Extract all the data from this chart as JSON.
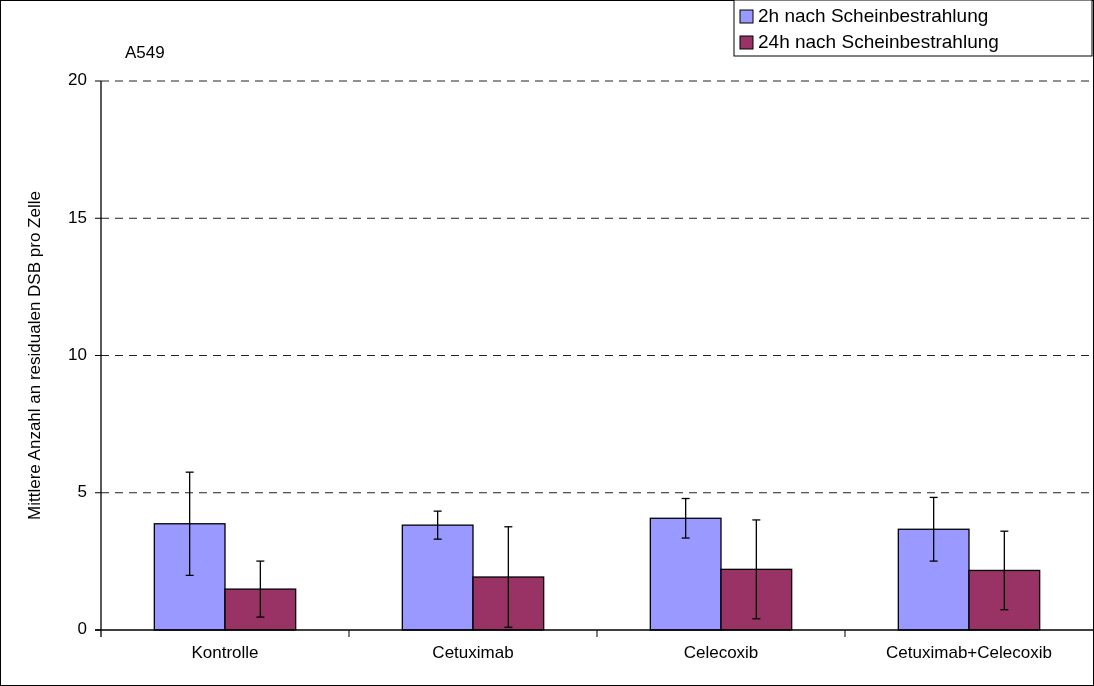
{
  "chart_data": {
    "type": "bar",
    "title": "A549",
    "ylabel": "Mittlere Anzahl an residualen DSB pro Zelle",
    "categories": [
      "Kontrolle",
      "Cetuximab",
      "Celecoxib",
      "Cetuximab+Celecoxib"
    ],
    "series": [
      {
        "name": "2h nach Scheinbestrahlung",
        "color": "#9999ff",
        "values": [
          3.87,
          3.82,
          4.07,
          3.67
        ],
        "errors": [
          1.88,
          0.51,
          0.72,
          1.16
        ]
      },
      {
        "name": "24h nach Scheinbestrahlung",
        "color": "#993366",
        "values": [
          1.49,
          1.93,
          2.21,
          2.17
        ],
        "errors": [
          1.02,
          1.83,
          1.8,
          1.43
        ]
      }
    ],
    "ylim": [
      0,
      20
    ],
    "yticks": [
      0,
      5,
      10,
      15,
      20
    ],
    "grid": "y",
    "legend": "top right"
  }
}
